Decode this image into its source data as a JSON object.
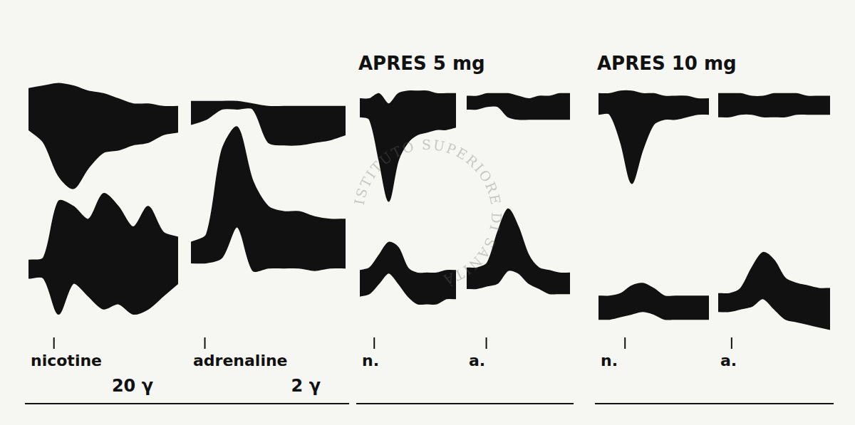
{
  "chart_data": {
    "type": "line",
    "color": "#111111",
    "grid": false,
    "tick_labels": false,
    "xlim": [
      0,
      10
    ],
    "ylim": [
      0,
      100
    ],
    "watermark": "ISTITUTO SUPERIORE DI SANITÀ",
    "groups": [
      {
        "panels": [
          {
            "label": "nicotine",
            "dose": "20 γ",
            "injection_at": 1.7,
            "x": [
              0,
              1,
              2,
              3,
              4,
              5,
              6,
              7,
              8,
              9,
              10
            ],
            "traces": [
              {
                "upper": [
                  96,
                  97,
                  98,
                  97,
                  95,
                  94,
                  92,
                  90,
                  90,
                  89,
                  89
                ],
                "lower": [
                  80,
                  75,
                  62,
                  57,
                  65,
                  71,
                  72,
                  74,
                  75,
                  78,
                  79
                ]
              },
              {
                "upper": [
                  29,
                  30,
                  52,
                  50,
                  45,
                  55,
                  50,
                  42,
                  50,
                  40,
                  38
                ],
                "lower": [
                  22,
                  22,
                  8,
                  20,
                  15,
                  10,
                  12,
                  8,
                  10,
                  15,
                  20
                ]
              }
            ]
          },
          {
            "label": "adrenaline",
            "dose": "2 γ",
            "injection_at": 0.9,
            "x": [
              0,
              1,
              2,
              3,
              4,
              5,
              6,
              7,
              8,
              9,
              10
            ],
            "traces": [
              {
                "upper": [
                  91,
                  91,
                  91,
                  91,
                  90,
                  89,
                  89,
                  89,
                  89,
                  89,
                  89
                ],
                "lower": [
                  82,
                  84,
                  88,
                  88,
                  88,
                  75,
                  74,
                  74,
                  75,
                  76,
                  78
                ]
              },
              {
                "upper": [
                  36,
                  39,
                  72,
                  81,
                  60,
                  50,
                  48,
                  48,
                  46,
                  45,
                  45
                ],
                "lower": [
                  28,
                  28,
                  30,
                  42,
                  25,
                  26,
                  26,
                  26,
                  25,
                  26,
                  26
                ]
              }
            ]
          }
        ]
      },
      {
        "title": "APRES 5 mg",
        "panels": [
          {
            "label": "n.",
            "injection_at": 1.5,
            "x": [
              0,
              1,
              2,
              3,
              4,
              5,
              6,
              7,
              8,
              9,
              10
            ],
            "traces": [
              {
                "upper": [
                  92,
                  92,
                  94,
                  90,
                  94,
                  95,
                  95,
                  95,
                  94,
                  94,
                  94
                ],
                "lower": [
                  85,
                  84,
                  68,
                  52,
                  68,
                  75,
                  78,
                  79,
                  80,
                  80,
                  81
                ]
              },
              {
                "upper": [
                  25,
                  26,
                  31,
                  36,
                  34,
                  26,
                  24,
                  24,
                  24,
                  25,
                  25
                ],
                "lower": [
                  15,
                  16,
                  20,
                  24,
                  20,
                  15,
                  12,
                  12,
                  12,
                  14,
                  14
                ]
              }
            ]
          },
          {
            "label": "a.",
            "injection_at": 1.9,
            "x": [
              0,
              1,
              2,
              3,
              4,
              5,
              6,
              7,
              8,
              9,
              10
            ],
            "traces": [
              {
                "upper": [
                  93,
                  93,
                  94,
                  94,
                  94,
                  93,
                  92,
                  93,
                  93,
                  94,
                  94
                ],
                "lower": [
                  88,
                  88,
                  89,
                  89,
                  85,
                  84,
                  84,
                  84,
                  84,
                  84,
                  84
                ]
              },
              {
                "upper": [
                  26,
                  26,
                  28,
                  40,
                  49,
                  42,
                  31,
                  26,
                  25,
                  24,
                  24
                ],
                "lower": [
                  18,
                  18,
                  19,
                  20,
                  25,
                  24,
                  20,
                  18,
                  16,
                  16,
                  16
                ]
              }
            ]
          }
        ]
      },
      {
        "title": "APRES 10 mg",
        "panels": [
          {
            "label": "n.",
            "injection_at": 2.4,
            "x": [
              0,
              1,
              2,
              3,
              4,
              5,
              6,
              7,
              8,
              9,
              10
            ],
            "traces": [
              {
                "upper": [
                  94,
                  94,
                  95,
                  95,
                  94,
                  94,
                  93,
                  93,
                  93,
                  92,
                  92
                ],
                "lower": [
                  86,
                  86,
                  75,
                  59,
                  72,
                  82,
                  84,
                  84,
                  85,
                  86,
                  86
                ]
              },
              {
                "upper": [
                  15,
                  15,
                  16,
                  19,
                  20,
                  18,
                  15,
                  15,
                  15,
                  15,
                  15
                ],
                "lower": [
                  6,
                  6,
                  7,
                  8,
                  9,
                  8,
                  6,
                  6,
                  6,
                  6,
                  6
                ]
              }
            ]
          },
          {
            "label": "a.",
            "injection_at": 1.2,
            "x": [
              0,
              1,
              2,
              3,
              4,
              5,
              6,
              7,
              8,
              9,
              10
            ],
            "traces": [
              {
                "upper": [
                  94,
                  94,
                  94,
                  93,
                  93,
                  94,
                  94,
                  94,
                  93,
                  93,
                  93
                ],
                "lower": [
                  85,
                  85,
                  86,
                  86,
                  85,
                  85,
                  85,
                  86,
                  86,
                  86,
                  86
                ]
              },
              {
                "upper": [
                  16,
                  16,
                  18,
                  26,
                  32,
                  29,
                  22,
                  20,
                  19,
                  18,
                  18
                ],
                "lower": [
                  9,
                  9,
                  10,
                  11,
                  14,
                  10,
                  6,
                  5,
                  4,
                  3,
                  2
                ]
              }
            ]
          }
        ]
      }
    ]
  }
}
